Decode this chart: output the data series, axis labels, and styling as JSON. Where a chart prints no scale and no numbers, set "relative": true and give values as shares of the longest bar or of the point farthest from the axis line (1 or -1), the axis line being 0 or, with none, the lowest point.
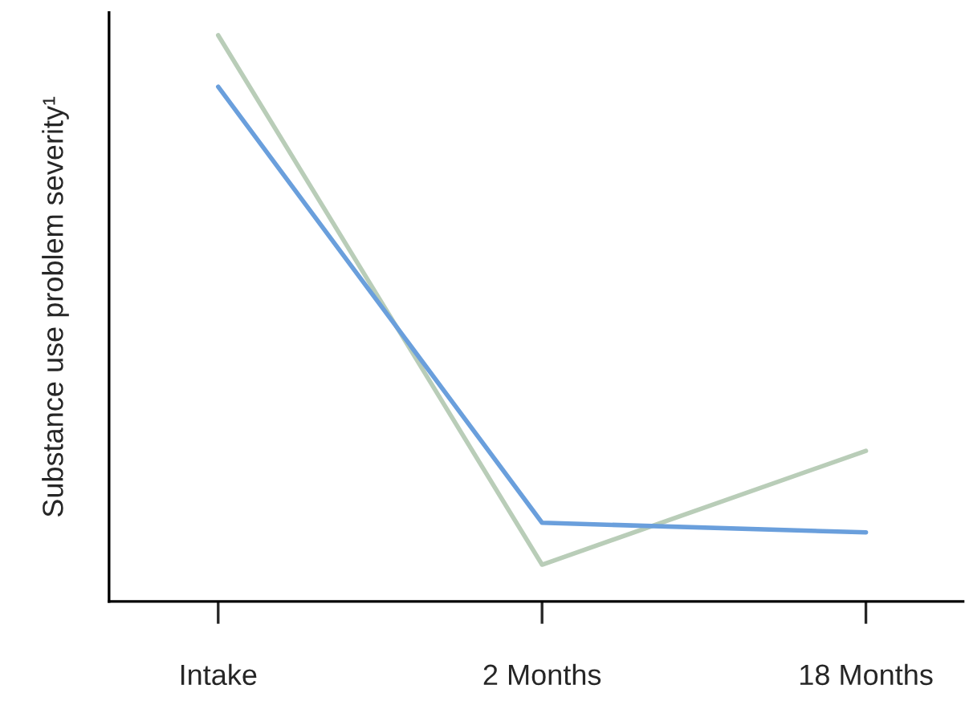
{
  "chart_data": {
    "type": "line",
    "ylabel": "Substance use problem severity¹",
    "categories": [
      "Intake",
      "2 Months",
      "18 Months"
    ],
    "relative": true,
    "series": [
      {
        "color": "#b9cdb8",
        "values": [
          1,
          0.065,
          0.266
        ]
      },
      {
        "color": "#6a9fdc",
        "values": [
          0.909,
          0.139,
          0.122
        ]
      }
    ]
  }
}
